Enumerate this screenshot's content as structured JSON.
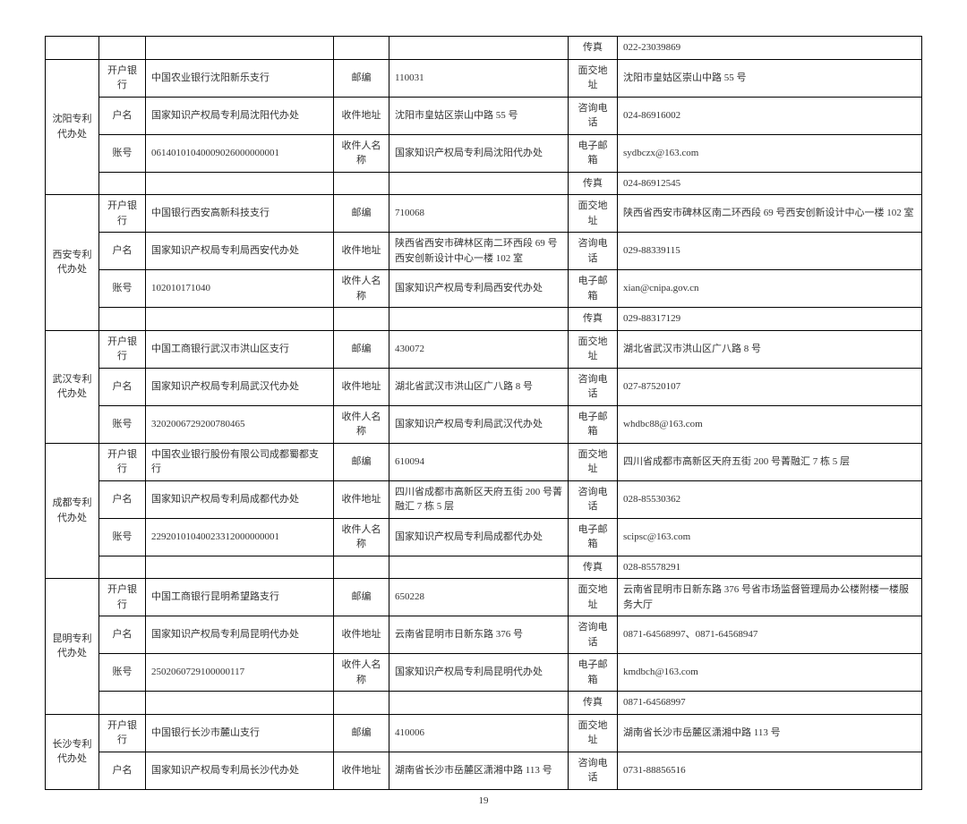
{
  "page_number": "19",
  "table": {
    "columns": [
      {
        "class": "col-office"
      },
      {
        "class": "col-label1"
      },
      {
        "class": "col-val1"
      },
      {
        "class": "col-label2"
      },
      {
        "class": "col-val2"
      },
      {
        "class": "col-label3"
      },
      {
        "class": "col-val3"
      }
    ],
    "rows": [
      {
        "cells": [
          {
            "k": "office",
            "rs": 1,
            "t": ""
          },
          {
            "k": "l1",
            "t": ""
          },
          {
            "k": "v1",
            "t": ""
          },
          {
            "k": "l2",
            "t": ""
          },
          {
            "k": "v2",
            "t": ""
          },
          {
            "k": "l3",
            "t": "传真"
          },
          {
            "k": "v3",
            "t": "022-23039869"
          }
        ]
      },
      {
        "cells": [
          {
            "k": "office",
            "rs": 4,
            "t": "沈阳专利代办处"
          },
          {
            "k": "l1",
            "t": "开户银行"
          },
          {
            "k": "v1",
            "t": "中国农业银行沈阳新乐支行"
          },
          {
            "k": "l2",
            "t": "邮编"
          },
          {
            "k": "v2",
            "t": "110031"
          },
          {
            "k": "l3",
            "t": "面交地址"
          },
          {
            "k": "v3",
            "t": "沈阳市皇姑区崇山中路 55 号"
          }
        ]
      },
      {
        "cells": [
          {
            "k": "l1",
            "t": "户名"
          },
          {
            "k": "v1",
            "t": "国家知识产权局专利局沈阳代办处"
          },
          {
            "k": "l2",
            "t": "收件地址"
          },
          {
            "k": "v2",
            "t": "沈阳市皇姑区崇山中路 55 号"
          },
          {
            "k": "l3",
            "t": "咨询电话"
          },
          {
            "k": "v3",
            "t": "024-86916002"
          }
        ]
      },
      {
        "cells": [
          {
            "k": "l1",
            "t": "账号"
          },
          {
            "k": "v1",
            "t": "06140101040009026000000001"
          },
          {
            "k": "l2",
            "t": "收件人名称"
          },
          {
            "k": "v2",
            "t": "国家知识产权局专利局沈阳代办处"
          },
          {
            "k": "l3",
            "t": "电子邮箱"
          },
          {
            "k": "v3",
            "t": "sydbczx@163.com"
          }
        ]
      },
      {
        "cells": [
          {
            "k": "l1",
            "t": ""
          },
          {
            "k": "v1",
            "t": ""
          },
          {
            "k": "l2",
            "t": ""
          },
          {
            "k": "v2",
            "t": ""
          },
          {
            "k": "l3",
            "t": "传真"
          },
          {
            "k": "v3",
            "t": "024-86912545"
          }
        ]
      },
      {
        "cells": [
          {
            "k": "office",
            "rs": 4,
            "t": "西安专利代办处"
          },
          {
            "k": "l1",
            "t": "开户银行"
          },
          {
            "k": "v1",
            "t": "中国银行西安高新科技支行"
          },
          {
            "k": "l2",
            "t": "邮编"
          },
          {
            "k": "v2",
            "t": "710068"
          },
          {
            "k": "l3",
            "t": "面交地址"
          },
          {
            "k": "v3",
            "t": "陕西省西安市碑林区南二环西段 69 号西安创新设计中心一楼 102 室"
          }
        ]
      },
      {
        "cells": [
          {
            "k": "l1",
            "t": "户名"
          },
          {
            "k": "v1",
            "t": "国家知识产权局专利局西安代办处"
          },
          {
            "k": "l2",
            "t": "收件地址"
          },
          {
            "k": "v2",
            "t": "陕西省西安市碑林区南二环西段 69 号西安创新设计中心一楼 102 室"
          },
          {
            "k": "l3",
            "t": "咨询电话"
          },
          {
            "k": "v3",
            "t": "029-88339115"
          }
        ]
      },
      {
        "cells": [
          {
            "k": "l1",
            "t": "账号"
          },
          {
            "k": "v1",
            "t": "102010171040"
          },
          {
            "k": "l2",
            "t": "收件人名称"
          },
          {
            "k": "v2",
            "t": "国家知识产权局专利局西安代办处"
          },
          {
            "k": "l3",
            "t": "电子邮箱"
          },
          {
            "k": "v3",
            "t": "xian@cnipa.gov.cn"
          }
        ]
      },
      {
        "cells": [
          {
            "k": "l1",
            "t": ""
          },
          {
            "k": "v1",
            "t": ""
          },
          {
            "k": "l2",
            "t": ""
          },
          {
            "k": "v2",
            "t": ""
          },
          {
            "k": "l3",
            "t": "传真"
          },
          {
            "k": "v3",
            "t": "029-88317129"
          }
        ]
      },
      {
        "cells": [
          {
            "k": "office",
            "rs": 3,
            "t": "武汉专利代办处"
          },
          {
            "k": "l1",
            "t": "开户银行"
          },
          {
            "k": "v1",
            "t": "中国工商银行武汉市洪山区支行"
          },
          {
            "k": "l2",
            "t": "邮编"
          },
          {
            "k": "v2",
            "t": "430072"
          },
          {
            "k": "l3",
            "t": "面交地址"
          },
          {
            "k": "v3",
            "t": "湖北省武汉市洪山区广八路 8 号"
          }
        ]
      },
      {
        "cells": [
          {
            "k": "l1",
            "t": "户名"
          },
          {
            "k": "v1",
            "t": "国家知识产权局专利局武汉代办处"
          },
          {
            "k": "l2",
            "t": "收件地址"
          },
          {
            "k": "v2",
            "t": "湖北省武汉市洪山区广八路 8 号"
          },
          {
            "k": "l3",
            "t": "咨询电话"
          },
          {
            "k": "v3",
            "t": "027-87520107"
          }
        ]
      },
      {
        "cells": [
          {
            "k": "l1",
            "t": "账号"
          },
          {
            "k": "v1",
            "t": "3202006729200780465"
          },
          {
            "k": "l2",
            "t": "收件人名称"
          },
          {
            "k": "v2",
            "t": "国家知识产权局专利局武汉代办处"
          },
          {
            "k": "l3",
            "t": "电子邮箱"
          },
          {
            "k": "v3",
            "t": "whdbc88@163.com"
          }
        ]
      },
      {
        "cells": [
          {
            "k": "office",
            "rs": 4,
            "t": "成都专利代办处"
          },
          {
            "k": "l1",
            "t": "开户银行"
          },
          {
            "k": "v1",
            "t": "中国农业银行股份有限公司成都蜀都支行"
          },
          {
            "k": "l2",
            "t": "邮编"
          },
          {
            "k": "v2",
            "t": "610094"
          },
          {
            "k": "l3",
            "t": "面交地址"
          },
          {
            "k": "v3",
            "t": "四川省成都市高新区天府五街 200 号菁融汇 7 栋 5 层"
          }
        ]
      },
      {
        "cells": [
          {
            "k": "l1",
            "t": "户名"
          },
          {
            "k": "v1",
            "t": "国家知识产权局专利局成都代办处"
          },
          {
            "k": "l2",
            "t": "收件地址"
          },
          {
            "k": "v2",
            "t": "四川省成都市高新区天府五街 200 号菁融汇 7 栋 5 层"
          },
          {
            "k": "l3",
            "t": "咨询电话"
          },
          {
            "k": "v3",
            "t": "028-85530362"
          }
        ]
      },
      {
        "cells": [
          {
            "k": "l1",
            "t": "账号"
          },
          {
            "k": "v1",
            "t": "22920101040023312000000001"
          },
          {
            "k": "l2",
            "t": "收件人名称"
          },
          {
            "k": "v2",
            "t": "国家知识产权局专利局成都代办处"
          },
          {
            "k": "l3",
            "t": "电子邮箱"
          },
          {
            "k": "v3",
            "t": "scipsc@163.com"
          }
        ]
      },
      {
        "cells": [
          {
            "k": "l1",
            "t": ""
          },
          {
            "k": "v1",
            "t": ""
          },
          {
            "k": "l2",
            "t": ""
          },
          {
            "k": "v2",
            "t": ""
          },
          {
            "k": "l3",
            "t": "传真"
          },
          {
            "k": "v3",
            "t": "028-85578291"
          }
        ]
      },
      {
        "cells": [
          {
            "k": "office",
            "rs": 4,
            "t": "昆明专利代办处"
          },
          {
            "k": "l1",
            "t": "开户银行"
          },
          {
            "k": "v1",
            "t": "中国工商银行昆明希望路支行"
          },
          {
            "k": "l2",
            "t": "邮编"
          },
          {
            "k": "v2",
            "t": "650228"
          },
          {
            "k": "l3",
            "t": "面交地址"
          },
          {
            "k": "v3",
            "t": "云南省昆明市日新东路 376 号省市场监督管理局办公楼附楼一楼服务大厅"
          }
        ]
      },
      {
        "cells": [
          {
            "k": "l1",
            "t": "户名"
          },
          {
            "k": "v1",
            "t": "国家知识产权局专利局昆明代办处"
          },
          {
            "k": "l2",
            "t": "收件地址"
          },
          {
            "k": "v2",
            "t": "云南省昆明市日新东路 376 号"
          },
          {
            "k": "l3",
            "t": "咨询电话"
          },
          {
            "k": "v3",
            "t": "0871-64568997、0871-64568947"
          }
        ]
      },
      {
        "cells": [
          {
            "k": "l1",
            "t": "账号"
          },
          {
            "k": "v1",
            "t": "2502060729100000117"
          },
          {
            "k": "l2",
            "t": "收件人名称"
          },
          {
            "k": "v2",
            "t": "国家知识产权局专利局昆明代办处"
          },
          {
            "k": "l3",
            "t": "电子邮箱"
          },
          {
            "k": "v3",
            "t": "kmdbch@163.com"
          }
        ]
      },
      {
        "cells": [
          {
            "k": "l1",
            "t": ""
          },
          {
            "k": "v1",
            "t": ""
          },
          {
            "k": "l2",
            "t": ""
          },
          {
            "k": "v2",
            "t": ""
          },
          {
            "k": "l3",
            "t": "传真"
          },
          {
            "k": "v3",
            "t": "0871-64568997"
          }
        ]
      },
      {
        "cells": [
          {
            "k": "office",
            "rs": 2,
            "t": "长沙专利代办处"
          },
          {
            "k": "l1",
            "t": "开户银行"
          },
          {
            "k": "v1",
            "t": "中国银行长沙市麓山支行"
          },
          {
            "k": "l2",
            "t": "邮编"
          },
          {
            "k": "v2",
            "t": "410006"
          },
          {
            "k": "l3",
            "t": "面交地址"
          },
          {
            "k": "v3",
            "t": "湖南省长沙市岳麓区潇湘中路 113 号"
          }
        ]
      },
      {
        "cells": [
          {
            "k": "l1",
            "t": "户名"
          },
          {
            "k": "v1",
            "t": "国家知识产权局专利局长沙代办处"
          },
          {
            "k": "l2",
            "t": "收件地址"
          },
          {
            "k": "v2",
            "t": "湖南省长沙市岳麓区潇湘中路 113 号"
          },
          {
            "k": "l3",
            "t": "咨询电话"
          },
          {
            "k": "v3",
            "t": "0731-88856516"
          }
        ]
      }
    ]
  }
}
